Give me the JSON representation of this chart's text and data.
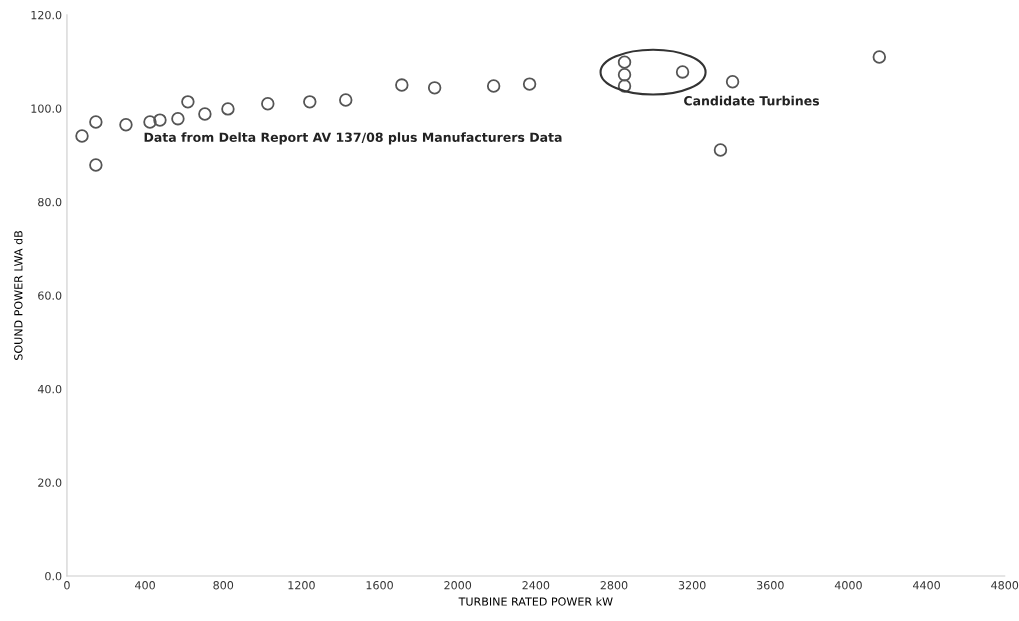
{
  "chart_data": {
    "type": "scatter",
    "xlabel": "TURBINE RATED POWER kW",
    "ylabel": "SOUND POWER LWA dB",
    "x": [
      77,
      148,
      148,
      302,
      425,
      476,
      568,
      619,
      706,
      824,
      1028,
      1243,
      1427,
      1714,
      1882,
      2184,
      2368,
      2854,
      2854,
      2854,
      3151,
      3345,
      3407,
      4158
    ],
    "series": [
      {
        "color": "#555555",
        "values": [
          94.1,
          97.1,
          87.9,
          96.5,
          97.1,
          97.5,
          97.8,
          101.4,
          98.8,
          99.9,
          101.0,
          101.4,
          101.8,
          105.0,
          104.4,
          104.8,
          105.2,
          109.9,
          107.2,
          104.8,
          107.8,
          91.1,
          105.7,
          111.0
        ]
      }
    ],
    "marker": "circle",
    "grid": false,
    "legend": false,
    "xlim": [
      0,
      4800
    ],
    "xticks": [
      0,
      400,
      800,
      1200,
      1600,
      2000,
      2400,
      2800,
      3200,
      3600,
      4000,
      4400,
      4800
    ],
    "ylim": [
      0,
      120
    ],
    "yticks": [
      {
        "value": 0,
        "label": "0.0"
      },
      {
        "value": 20,
        "label": "20.0"
      },
      {
        "value": 40,
        "label": "40.0"
      },
      {
        "value": 60,
        "label": "60.0"
      },
      {
        "value": 80,
        "label": "80.0"
      },
      {
        "value": 100,
        "label": "100.0"
      },
      {
        "value": 120,
        "label": "120.0"
      }
    ],
    "annotations": [
      "Data from Delta Report AV 137/08 plus Manufacturers Data",
      "Candidate Turbines"
    ]
  }
}
